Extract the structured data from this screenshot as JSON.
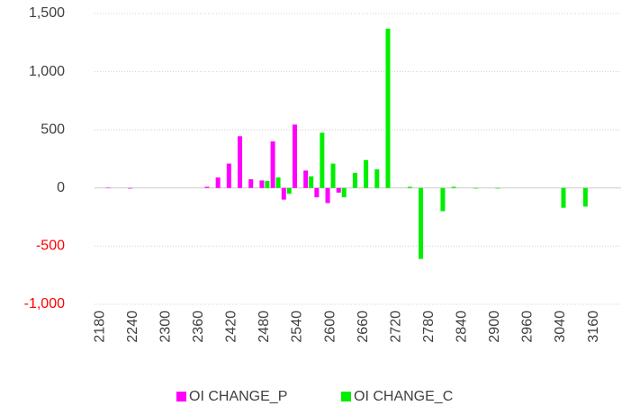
{
  "chart_data": {
    "type": "bar",
    "categories": [
      "2180",
      null,
      null,
      "2240",
      null,
      null,
      "2300",
      null,
      null,
      "2360",
      null,
      null,
      "2420",
      null,
      null,
      "2480",
      null,
      null,
      "2540",
      null,
      null,
      "2600",
      null,
      null,
      "2660",
      null,
      null,
      "2720",
      null,
      null,
      "2780",
      null,
      null,
      "2840",
      null,
      null,
      "2900",
      null,
      null,
      "2960",
      null,
      null,
      "3040",
      null,
      null,
      "3160",
      null,
      null
    ],
    "series": [
      {
        "name": "OI CHANGE_P",
        "color": "#ff00ff",
        "values": [
          null,
          2,
          null,
          -5,
          null,
          null,
          null,
          null,
          null,
          null,
          10,
          90,
          210,
          445,
          75,
          65,
          400,
          -100,
          545,
          150,
          -80,
          -130,
          -40,
          null,
          null,
          null,
          null,
          null,
          null,
          null,
          null,
          null,
          null,
          null,
          null,
          null,
          null,
          null,
          null,
          null,
          null,
          null,
          null,
          null,
          null,
          null,
          null,
          null
        ]
      },
      {
        "name": "OI CHANGE_C",
        "color": "#00ee00",
        "values": [
          null,
          null,
          null,
          null,
          null,
          null,
          null,
          null,
          null,
          null,
          null,
          null,
          null,
          null,
          null,
          60,
          90,
          -50,
          null,
          100,
          475,
          210,
          -80,
          130,
          240,
          160,
          1370,
          null,
          10,
          -610,
          null,
          -200,
          10,
          null,
          -5,
          null,
          -5,
          null,
          null,
          null,
          null,
          null,
          -170,
          null,
          -160,
          null,
          null,
          null
        ]
      }
    ],
    "ylim": [
      -1000,
      1500
    ],
    "yticks": [
      {
        "value": -1000,
        "label": "-1,000"
      },
      -500,
      0,
      500,
      {
        "value": 1000,
        "label": "1,000"
      },
      {
        "value": 1500,
        "label": "1,500"
      }
    ],
    "negative_tick_color": "#ff0000",
    "grid": true,
    "legend": "bottom"
  }
}
